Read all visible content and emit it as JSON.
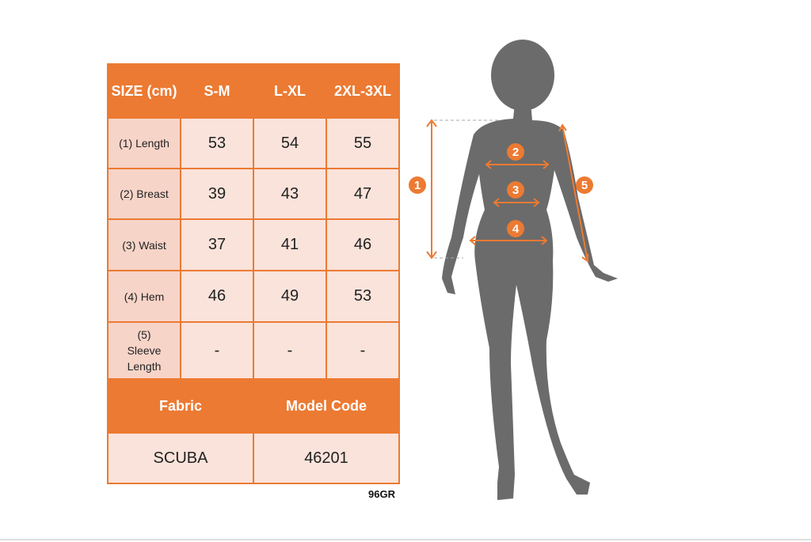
{
  "header": {
    "size": "SIZE (cm)",
    "columns": [
      "S-M",
      "L-XL",
      "2XL-3XL"
    ]
  },
  "rows": [
    {
      "label": "(1) Length",
      "values": [
        "53",
        "54",
        "55"
      ]
    },
    {
      "label": "(2) Breast",
      "values": [
        "39",
        "43",
        "47"
      ]
    },
    {
      "label": "(3) Waist",
      "values": [
        "37",
        "41",
        "46"
      ]
    },
    {
      "label": "(4) Hem",
      "values": [
        "46",
        "49",
        "53"
      ]
    },
    {
      "label": "(5) Sleeve Length",
      "values": [
        "-",
        "-",
        "-"
      ]
    }
  ],
  "footer": {
    "fabric_label": "Fabric",
    "model_code_label": "Model Code",
    "fabric": "SCUBA",
    "model_code": "46201"
  },
  "code": "96GR",
  "markers": [
    "1",
    "2",
    "3",
    "4",
    "5"
  ],
  "colors": {
    "accent": "#ec7a32",
    "cell": "#f9dcd2",
    "silhouette": "#6b6b6b"
  }
}
